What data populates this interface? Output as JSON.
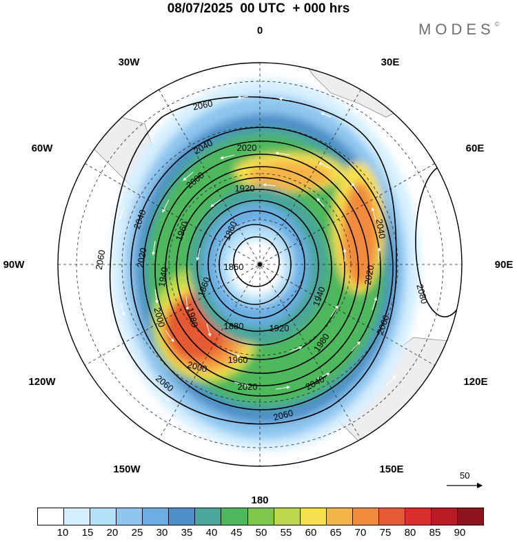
{
  "title": "08/07/2025  00 UTC  + 000 hrs",
  "brand": "MODES",
  "brand_mark": "©",
  "map": {
    "projection": "south polar stereographic",
    "longitude_labels": [
      "0",
      "30E",
      "60E",
      "90E",
      "120E",
      "150E",
      "180",
      "150W",
      "120W",
      "90W",
      "60W",
      "30W"
    ],
    "contour_labels": [
      "1860",
      "1880",
      "1920",
      "1940",
      "1960",
      "1980",
      "2000",
      "2020",
      "2040",
      "2060",
      "2080"
    ],
    "wind_reference_label": "50"
  },
  "colorbar": {
    "tick_labels": [
      "10",
      "15",
      "20",
      "25",
      "30",
      "35",
      "40",
      "45",
      "50",
      "55",
      "60",
      "65",
      "70",
      "75",
      "80",
      "85",
      "90"
    ],
    "colors": [
      "#ffffff",
      "#d5efff",
      "#b4e0f8",
      "#8ec6ee",
      "#6aaee2",
      "#4d8fc8",
      "#4aa69a",
      "#4eb85c",
      "#7ec84a",
      "#bcd94e",
      "#f5df50",
      "#f5b446",
      "#f28a3c",
      "#e55a32",
      "#d8302c",
      "#b81d26",
      "#8c1520"
    ]
  }
}
